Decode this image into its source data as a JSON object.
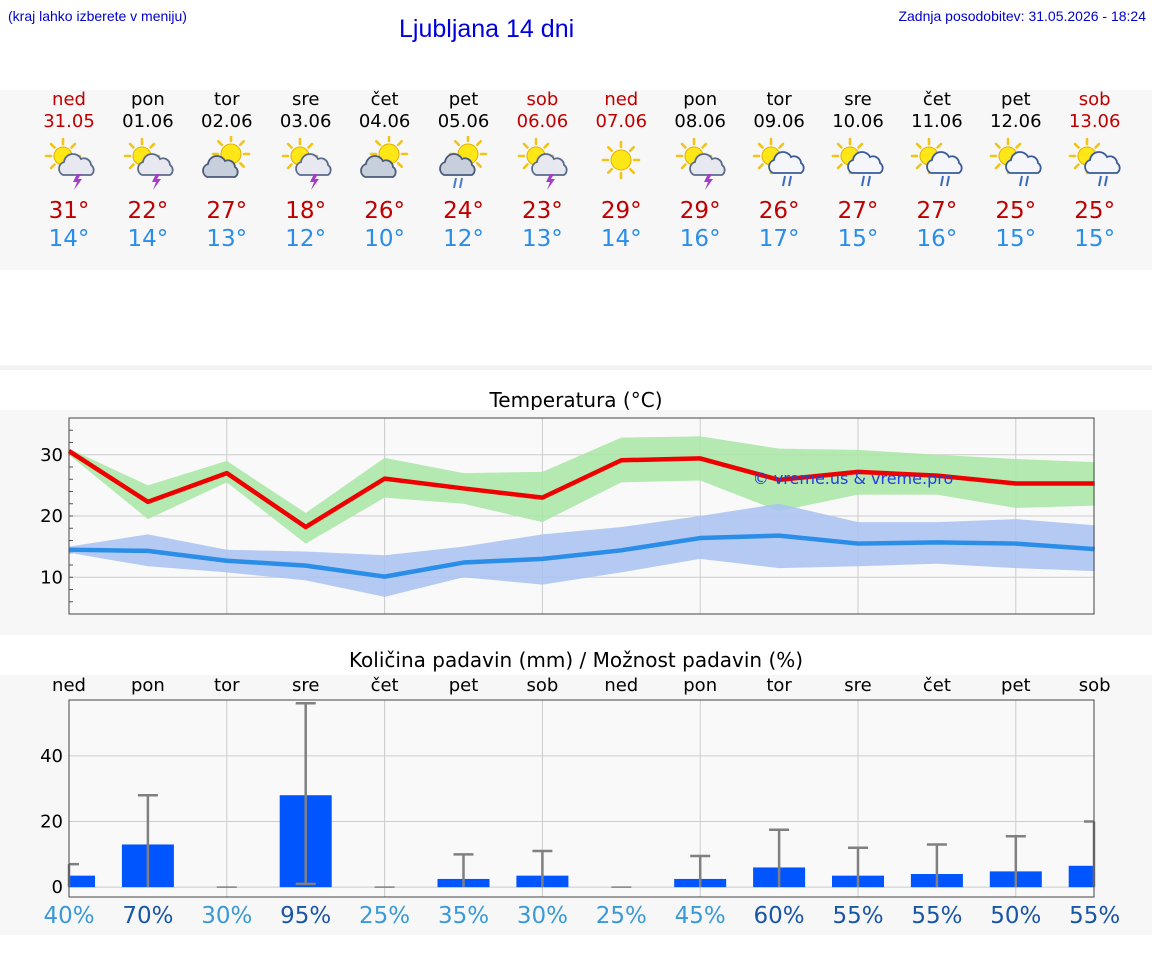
{
  "header": {
    "location_hint": "(kraj lahko izberete v meniju)",
    "title": "Ljubljana 14 dni",
    "updated": "Zadnja posodobitev: 31.05.2026 - 18:24"
  },
  "days": [
    {
      "name": "ned",
      "date": "31.05",
      "weekend": true,
      "icon": "sun-cloud-thunder-icon",
      "max": "31°",
      "min": "14°"
    },
    {
      "name": "pon",
      "date": "01.06",
      "weekend": false,
      "icon": "sun-cloud-thunder-icon",
      "max": "22°",
      "min": "14°"
    },
    {
      "name": "tor",
      "date": "02.06",
      "weekend": false,
      "icon": "sun-cloud-icon",
      "max": "27°",
      "min": "13°"
    },
    {
      "name": "sre",
      "date": "03.06",
      "weekend": false,
      "icon": "sun-cloud-thunder-icon",
      "max": "18°",
      "min": "12°"
    },
    {
      "name": "čet",
      "date": "04.06",
      "weekend": false,
      "icon": "sun-cloud-icon",
      "max": "26°",
      "min": "10°"
    },
    {
      "name": "pet",
      "date": "05.06",
      "weekend": false,
      "icon": "cloud-rain-icon",
      "max": "24°",
      "min": "12°"
    },
    {
      "name": "sob",
      "date": "06.06",
      "weekend": true,
      "icon": "sun-cloud-thunder-icon",
      "max": "23°",
      "min": "13°"
    },
    {
      "name": "ned",
      "date": "07.06",
      "weekend": true,
      "icon": "sun-icon",
      "max": "29°",
      "min": "14°"
    },
    {
      "name": "pon",
      "date": "08.06",
      "weekend": false,
      "icon": "sun-cloud-thunder-icon",
      "max": "29°",
      "min": "16°"
    },
    {
      "name": "tor",
      "date": "09.06",
      "weekend": false,
      "icon": "sun-cloud-rain-icon",
      "max": "26°",
      "min": "17°"
    },
    {
      "name": "sre",
      "date": "10.06",
      "weekend": false,
      "icon": "sun-cloud-rain-icon",
      "max": "27°",
      "min": "15°"
    },
    {
      "name": "čet",
      "date": "11.06",
      "weekend": false,
      "icon": "sun-cloud-rain-icon",
      "max": "27°",
      "min": "16°"
    },
    {
      "name": "pet",
      "date": "12.06",
      "weekend": false,
      "icon": "sun-cloud-rain-icon",
      "max": "25°",
      "min": "15°"
    },
    {
      "name": "sob",
      "date": "13.06",
      "weekend": true,
      "icon": "sun-cloud-rain-icon",
      "max": "25°",
      "min": "15°"
    }
  ],
  "colors": {
    "max": "#c00000",
    "min": "#2a8de8",
    "weekend": "#c00000",
    "link": "#0000cc"
  },
  "temp_chart": {
    "title": "Temperatura (°C)",
    "watermark": "© vreme.us & vreme.pro"
  },
  "precip_chart": {
    "title": "Količina padavin (mm) / Možnost padavin (%)"
  },
  "chart_data": [
    {
      "type": "line",
      "title": "Temperatura (°C)",
      "x": [
        "31.05",
        "01.06",
        "02.06",
        "03.06",
        "04.06",
        "05.06",
        "06.06",
        "07.06",
        "08.06",
        "09.06",
        "10.06",
        "11.06",
        "12.06",
        "13.06"
      ],
      "ylim": [
        4,
        36
      ],
      "yticks": [
        10,
        20,
        30
      ],
      "grid": true,
      "series": [
        {
          "role": "max",
          "color": "#ee0000",
          "values": [
            30.6,
            22.3,
            27.0,
            18.2,
            26.1,
            24.5,
            23.0,
            29.1,
            29.4,
            25.9,
            27.2,
            26.6,
            25.3,
            25.3
          ],
          "band_low": [
            30.0,
            19.5,
            25.5,
            15.5,
            23.0,
            22.0,
            19.0,
            25.5,
            25.8,
            20.8,
            23.5,
            23.5,
            21.3,
            21.7
          ],
          "band_high": [
            31.0,
            25.0,
            29.0,
            20.5,
            29.5,
            27.0,
            27.2,
            32.8,
            33.0,
            31.0,
            30.8,
            30.0,
            29.3,
            28.8
          ]
        },
        {
          "role": "min",
          "color": "#2a8de8",
          "values": [
            14.5,
            14.3,
            12.7,
            11.9,
            10.1,
            12.4,
            13.0,
            14.4,
            16.4,
            16.8,
            15.5,
            15.7,
            15.5,
            14.6
          ],
          "band_low": [
            14.0,
            11.8,
            10.8,
            9.5,
            6.8,
            10.0,
            8.8,
            10.8,
            13.0,
            11.5,
            11.8,
            12.2,
            11.5,
            11.0
          ],
          "band_high": [
            15.0,
            17.0,
            14.5,
            14.2,
            13.6,
            15.0,
            17.0,
            18.2,
            20.0,
            22.0,
            19.0,
            19.0,
            19.5,
            18.5
          ]
        }
      ]
    },
    {
      "type": "bar",
      "title": "Količina padavin (mm) / Možnost padavin (%)",
      "categories": [
        "ned",
        "pon",
        "tor",
        "sre",
        "čet",
        "pet",
        "sob",
        "ned",
        "pon",
        "tor",
        "sre",
        "čet",
        "pet",
        "sob"
      ],
      "ylim": [
        -3,
        57
      ],
      "yticks": [
        0,
        20,
        40
      ],
      "grid": true,
      "values": [
        3.5,
        13.0,
        0,
        28.0,
        0,
        2.5,
        3.5,
        0,
        2.5,
        6.0,
        3.5,
        4.0,
        4.8,
        6.5
      ],
      "error_low": [
        0,
        0,
        0,
        1.0,
        0,
        0,
        0,
        0,
        0,
        0,
        0,
        0,
        0,
        0
      ],
      "error_high": [
        7.0,
        28.0,
        0,
        56.0,
        0,
        10.0,
        11.0,
        0,
        9.5,
        17.5,
        12.0,
        13.0,
        15.5,
        20.0
      ],
      "probability": [
        "40%",
        "70%",
        "30%",
        "95%",
        "25%",
        "35%",
        "30%",
        "25%",
        "45%",
        "60%",
        "55%",
        "55%",
        "50%",
        "55%"
      ],
      "bar_color": "#0055ff",
      "error_color": "#808080"
    }
  ]
}
